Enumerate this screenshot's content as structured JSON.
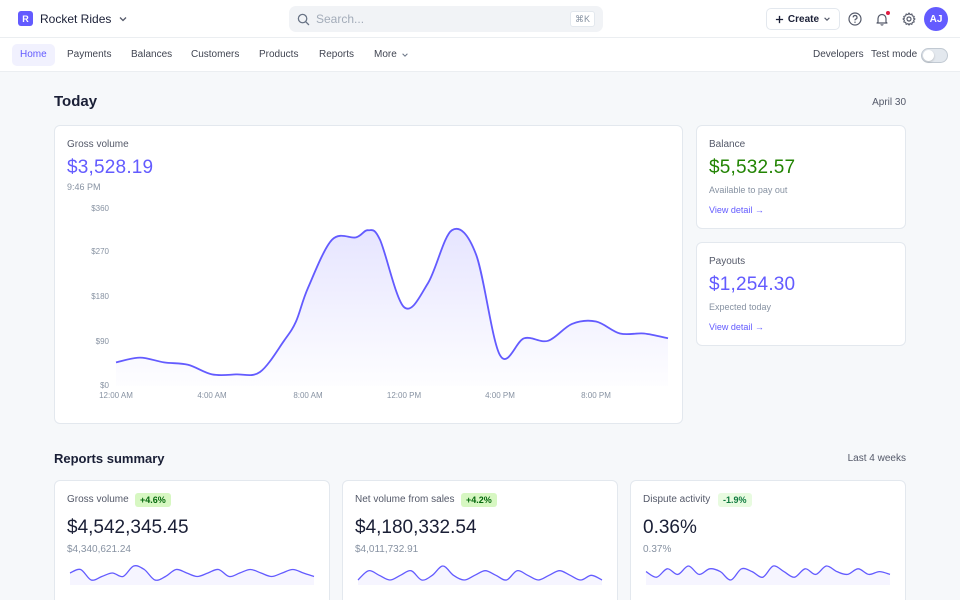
{
  "brand": {
    "logo_letter": "R",
    "name": "Rocket Rides"
  },
  "search": {
    "placeholder": "Search...",
    "shortcut": "⌘K"
  },
  "header": {
    "create_label": "Create",
    "avatar_initials": "AJ"
  },
  "nav": {
    "items": [
      {
        "label": "Home",
        "active": true
      },
      {
        "label": "Payments"
      },
      {
        "label": "Balances"
      },
      {
        "label": "Customers"
      },
      {
        "label": "Products"
      },
      {
        "label": "Reports"
      },
      {
        "label": "More"
      }
    ],
    "developers": "Developers",
    "test_mode": "Test mode"
  },
  "today": {
    "title": "Today",
    "date": "April 30",
    "gross": {
      "label": "Gross volume",
      "value": "$3,528.19",
      "time": "9:46 PM"
    },
    "balance": {
      "label": "Balance",
      "value": "$5,532.57",
      "sub": "Available to pay out",
      "link": "View detail →"
    },
    "payouts": {
      "label": "Payouts",
      "value": "$1,254.30",
      "sub": "Expected today",
      "link": "View detail →"
    }
  },
  "chart_data": {
    "type": "area",
    "y_ticks": [
      "$360",
      "$270",
      "$180",
      "$90",
      "$0"
    ],
    "ylim": [
      0,
      360
    ],
    "x_ticks": [
      "12:00 AM",
      "4:00 AM",
      "8:00 AM",
      "12:00 PM",
      "4:00 PM",
      "8:00 PM"
    ],
    "x_hours": [
      0,
      1,
      2,
      3,
      4,
      5,
      6,
      7,
      7.5,
      8,
      9,
      10,
      10.5,
      11,
      12,
      13,
      14,
      15,
      16,
      17,
      18,
      19,
      20,
      21,
      22,
      23
    ],
    "values": [
      45,
      55,
      45,
      40,
      20,
      20,
      25,
      90,
      130,
      200,
      300,
      305,
      320,
      300,
      160,
      210,
      320,
      270,
      60,
      95,
      90,
      125,
      130,
      105,
      105,
      95
    ],
    "color": "#635bff"
  },
  "summary": {
    "title": "Reports summary",
    "period": "Last 4 weeks",
    "cards": [
      {
        "label": "Gross volume",
        "badge": "+4.6%",
        "value": "$4,542,345.45",
        "previous": "$4,340,621.24",
        "spark": [
          6,
          7,
          4,
          5,
          6,
          5,
          8,
          7,
          4,
          5,
          7,
          6,
          5,
          6,
          7,
          5,
          6,
          7,
          6,
          5,
          6,
          7,
          6,
          5
        ]
      },
      {
        "label": "Net volume from sales",
        "badge": "+4.2%",
        "value": "$4,180,332.54",
        "previous": "$4,011,732.91",
        "spark": [
          5,
          7,
          6,
          5,
          6,
          7,
          5,
          6,
          8,
          6,
          5,
          6,
          7,
          6,
          5,
          7,
          6,
          5,
          6,
          7,
          6,
          5,
          6,
          5
        ]
      },
      {
        "label": "Dispute activity",
        "badge": "-1.9%",
        "value": "0.36%",
        "previous": "0.37%",
        "spark": [
          6,
          4,
          7,
          5,
          8,
          5,
          7,
          6,
          3,
          7,
          6,
          4,
          8,
          6,
          4,
          7,
          5,
          8,
          6,
          5,
          7,
          5,
          6,
          5
        ]
      }
    ]
  }
}
